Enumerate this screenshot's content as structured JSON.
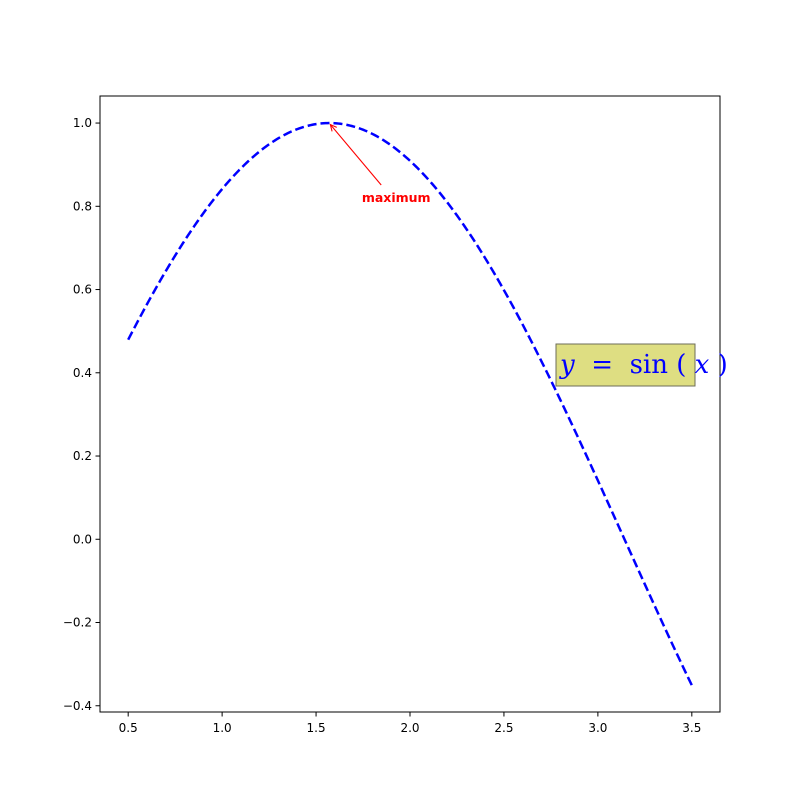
{
  "chart_data": {
    "type": "line",
    "title": "",
    "xlabel": "",
    "ylabel": "",
    "xlim": [
      0.35,
      3.65
    ],
    "ylim": [
      -0.415,
      1.065
    ],
    "x_ticks": [
      0.5,
      1.0,
      1.5,
      2.0,
      2.5,
      3.0,
      3.5
    ],
    "x_tick_labels": [
      "0.5",
      "1.0",
      "1.5",
      "2.0",
      "2.5",
      "3.0",
      "3.5"
    ],
    "y_ticks": [
      -0.4,
      -0.2,
      0.0,
      0.2,
      0.4,
      0.6,
      0.8,
      1.0
    ],
    "y_tick_labels": [
      "−0.4",
      "−0.2",
      "0.0",
      "0.2",
      "0.4",
      "0.6",
      "0.8",
      "1.0"
    ],
    "grid": false,
    "series": [
      {
        "function": "sin",
        "x_start": 0.5,
        "x_end": 3.5,
        "color": "#0000ff",
        "line_style": "dashed"
      }
    ],
    "annotation": {
      "text": "maximum",
      "xy": [
        1.5708,
        1.0
      ],
      "xytext": [
        1.9,
        0.82
      ],
      "color": "#ff0000"
    },
    "formula_box": {
      "prefix": "y",
      "equals": " = ",
      "func": "sin",
      "open": "(",
      "arg": "x",
      "close": ")",
      "text_color": "#0000ff",
      "box_color": "#dede82",
      "border_color": "#6e6e58"
    }
  }
}
